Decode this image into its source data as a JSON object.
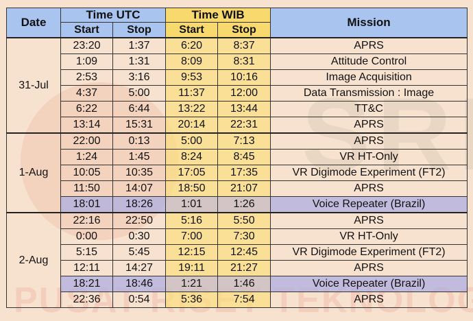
{
  "headers": {
    "date": "Date",
    "time_utc": "Time UTC",
    "time_wib": "Time WIB",
    "start": "Start",
    "stop": "Stop",
    "mission": "Mission"
  },
  "groups": [
    {
      "date": "31-Jul",
      "rows": [
        {
          "utc_start": "23:20",
          "utc_stop": "1:37",
          "wib_start": "6:20",
          "wib_stop": "8:37",
          "mission": "APRS",
          "highlight": false
        },
        {
          "utc_start": "1:09",
          "utc_stop": "1:31",
          "wib_start": "8:09",
          "wib_stop": "8:31",
          "mission": "Attitude Control",
          "highlight": false
        },
        {
          "utc_start": "2:53",
          "utc_stop": "3:16",
          "wib_start": "9:53",
          "wib_stop": "10:16",
          "mission": "Image Acquisition",
          "highlight": false
        },
        {
          "utc_start": "4:37",
          "utc_stop": "5:00",
          "wib_start": "11:37",
          "wib_stop": "12:00",
          "mission": "Data Transmission : Image",
          "highlight": false
        },
        {
          "utc_start": "6:22",
          "utc_stop": "6:44",
          "wib_start": "13:22",
          "wib_stop": "13:44",
          "mission": "TT&C",
          "highlight": false
        },
        {
          "utc_start": "13:14",
          "utc_stop": "15:31",
          "wib_start": "20:14",
          "wib_stop": "22:31",
          "mission": "APRS",
          "highlight": false
        }
      ]
    },
    {
      "date": "1-Aug",
      "rows": [
        {
          "utc_start": "22:00",
          "utc_stop": "0:13",
          "wib_start": "5:00",
          "wib_stop": "7:13",
          "mission": "APRS",
          "highlight": false
        },
        {
          "utc_start": "1:24",
          "utc_stop": "1:45",
          "wib_start": "8:24",
          "wib_stop": "8:45",
          "mission": "VR HT-Only",
          "highlight": false
        },
        {
          "utc_start": "10:05",
          "utc_stop": "10:35",
          "wib_start": "17:05",
          "wib_stop": "17:35",
          "mission": "VR Digimode Experiment (FT2)",
          "highlight": false
        },
        {
          "utc_start": "11:50",
          "utc_stop": "14:07",
          "wib_start": "18:50",
          "wib_stop": "21:07",
          "mission": "APRS",
          "highlight": false
        },
        {
          "utc_start": "18:01",
          "utc_stop": "18:26",
          "wib_start": "1:01",
          "wib_stop": "1:26",
          "mission": "Voice Repeater (Brazil)",
          "highlight": true
        }
      ]
    },
    {
      "date": "2-Aug",
      "rows": [
        {
          "utc_start": "22:16",
          "utc_stop": "22:50",
          "wib_start": "5:16",
          "wib_stop": "5:50",
          "mission": "APRS",
          "highlight": false
        },
        {
          "utc_start": "0:00",
          "utc_stop": "0:30",
          "wib_start": "7:00",
          "wib_stop": "7:30",
          "mission": "VR HT-Only",
          "highlight": false
        },
        {
          "utc_start": "5:15",
          "utc_stop": "5:45",
          "wib_start": "12:15",
          "wib_stop": "12:45",
          "mission": "VR Digimode Experiment (FT2)",
          "highlight": false
        },
        {
          "utc_start": "12:11",
          "utc_stop": "14:27",
          "wib_start": "19:11",
          "wib_stop": "21:27",
          "mission": "APRS",
          "highlight": false
        },
        {
          "utc_start": "18:21",
          "utc_stop": "18:46",
          "wib_start": "1:21",
          "wib_stop": "1:46",
          "mission": "Voice Repeater (Brazil)",
          "highlight": true
        },
        {
          "utc_start": "22:36",
          "utc_stop": "0:54",
          "wib_start": "5:36",
          "wib_stop": "7:54",
          "mission": "APRS",
          "highlight": false
        }
      ]
    }
  ],
  "colors": {
    "header_blue": "#aac4f0",
    "header_yellow": "#f8d96e",
    "background": "#f7e2cf",
    "highlight_row": "#afafe1"
  }
}
